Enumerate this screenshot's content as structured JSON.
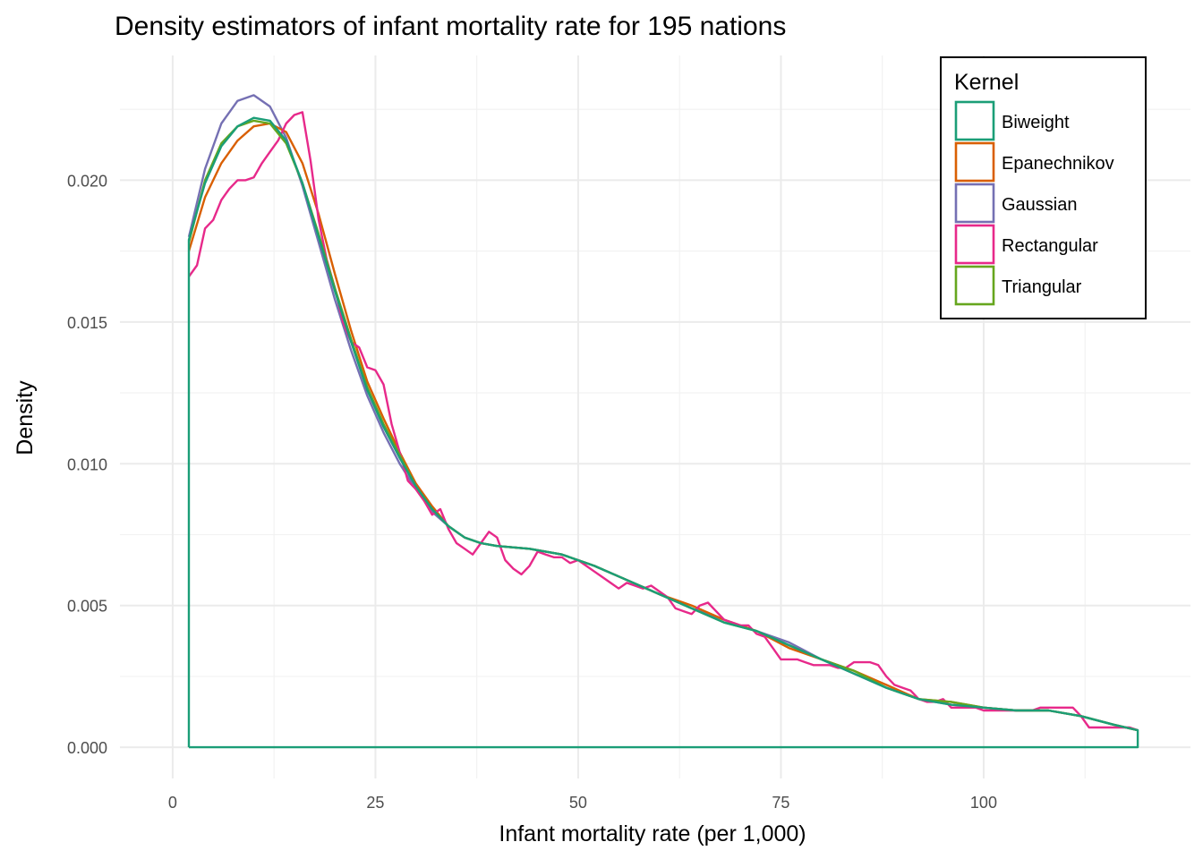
{
  "chart_data": {
    "type": "line",
    "title": "Density estimators of infant mortality rate for 195 nations",
    "xlabel": "Infant mortality rate (per 1,000)",
    "ylabel": "Density",
    "xlim": [
      -6.5,
      125.5
    ],
    "ylim": [
      -0.0011,
      0.0244
    ],
    "x_ticks": [
      0,
      25,
      50,
      75,
      100
    ],
    "x_tick_labels": [
      "0",
      "25",
      "50",
      "75",
      "100"
    ],
    "y_ticks": [
      0.0,
      0.005,
      0.01,
      0.015,
      0.02
    ],
    "y_tick_labels": [
      "0.000",
      "0.005",
      "0.010",
      "0.015",
      "0.020"
    ],
    "grid": true,
    "legend": {
      "title": "Kernel",
      "placement": "top-right"
    },
    "series": [
      {
        "name": "Biweight",
        "color": "#1B9E77",
        "points": [
          [
            2,
            0
          ],
          [
            2,
            0.0179
          ],
          [
            4,
            0.0199
          ],
          [
            6,
            0.0212
          ],
          [
            8,
            0.0219
          ],
          [
            10,
            0.0222
          ],
          [
            12,
            0.0221
          ],
          [
            14,
            0.0214
          ],
          [
            16,
            0.0199
          ],
          [
            18,
            0.018
          ],
          [
            20,
            0.0161
          ],
          [
            22,
            0.0143
          ],
          [
            24,
            0.0126
          ],
          [
            26,
            0.0113
          ],
          [
            28,
            0.0102
          ],
          [
            30,
            0.0092
          ],
          [
            32,
            0.0084
          ],
          [
            34,
            0.0078
          ],
          [
            36,
            0.0074
          ],
          [
            38,
            0.0072
          ],
          [
            40,
            0.0071
          ],
          [
            44,
            0.007
          ],
          [
            48,
            0.0068
          ],
          [
            52,
            0.0064
          ],
          [
            56,
            0.0059
          ],
          [
            60,
            0.0054
          ],
          [
            64,
            0.0049
          ],
          [
            68,
            0.0044
          ],
          [
            72,
            0.0041
          ],
          [
            76,
            0.0036
          ],
          [
            80,
            0.0031
          ],
          [
            84,
            0.0026
          ],
          [
            88,
            0.0021
          ],
          [
            92,
            0.0017
          ],
          [
            96,
            0.0015
          ],
          [
            100,
            0.0014
          ],
          [
            104,
            0.0013
          ],
          [
            108,
            0.0013
          ],
          [
            112,
            0.0011
          ],
          [
            116,
            0.0008
          ],
          [
            119,
            0.0006
          ],
          [
            119,
            0
          ],
          [
            2,
            0
          ]
        ]
      },
      {
        "name": "Epanechnikov",
        "color": "#D95F02",
        "points": [
          [
            2,
            0.0175
          ],
          [
            4,
            0.0194
          ],
          [
            6,
            0.0206
          ],
          [
            8,
            0.0214
          ],
          [
            10,
            0.0219
          ],
          [
            12,
            0.022
          ],
          [
            14,
            0.0217
          ],
          [
            16,
            0.0206
          ],
          [
            18,
            0.0188
          ],
          [
            20,
            0.0167
          ],
          [
            22,
            0.0147
          ],
          [
            24,
            0.0129
          ],
          [
            26,
            0.0116
          ],
          [
            28,
            0.0104
          ],
          [
            30,
            0.0093
          ],
          [
            32,
            0.0085
          ],
          [
            34,
            0.0078
          ],
          [
            36,
            0.0074
          ],
          [
            38,
            0.0072
          ],
          [
            40,
            0.0071
          ],
          [
            44,
            0.007
          ],
          [
            48,
            0.0068
          ],
          [
            52,
            0.0064
          ],
          [
            56,
            0.0059
          ],
          [
            60,
            0.0054
          ],
          [
            64,
            0.005
          ],
          [
            68,
            0.0045
          ],
          [
            72,
            0.0041
          ],
          [
            76,
            0.0035
          ],
          [
            80,
            0.0031
          ],
          [
            84,
            0.0027
          ],
          [
            88,
            0.0022
          ],
          [
            92,
            0.0017
          ],
          [
            96,
            0.0016
          ],
          [
            100,
            0.0014
          ],
          [
            104,
            0.0013
          ],
          [
            108,
            0.0013
          ],
          [
            112,
            0.0011
          ],
          [
            116,
            0.0008
          ],
          [
            119,
            0.0006
          ]
        ]
      },
      {
        "name": "Gaussian",
        "color": "#7570B3",
        "points": [
          [
            2,
            0.018
          ],
          [
            4,
            0.0204
          ],
          [
            6,
            0.022
          ],
          [
            8,
            0.0228
          ],
          [
            10,
            0.023
          ],
          [
            12,
            0.0226
          ],
          [
            14,
            0.0215
          ],
          [
            16,
            0.0198
          ],
          [
            18,
            0.0178
          ],
          [
            20,
            0.0158
          ],
          [
            22,
            0.014
          ],
          [
            24,
            0.0124
          ],
          [
            26,
            0.0111
          ],
          [
            28,
            0.01
          ],
          [
            30,
            0.0091
          ],
          [
            32,
            0.0083
          ],
          [
            34,
            0.0078
          ],
          [
            36,
            0.0074
          ],
          [
            38,
            0.0072
          ],
          [
            40,
            0.0071
          ],
          [
            44,
            0.007
          ],
          [
            48,
            0.0068
          ],
          [
            52,
            0.0064
          ],
          [
            56,
            0.0059
          ],
          [
            60,
            0.0054
          ],
          [
            64,
            0.0049
          ],
          [
            68,
            0.0045
          ],
          [
            72,
            0.0041
          ],
          [
            76,
            0.0037
          ],
          [
            80,
            0.0031
          ],
          [
            84,
            0.0026
          ],
          [
            88,
            0.0021
          ],
          [
            92,
            0.0017
          ],
          [
            96,
            0.0015
          ],
          [
            100,
            0.0014
          ],
          [
            104,
            0.0013
          ],
          [
            108,
            0.0013
          ],
          [
            112,
            0.0011
          ],
          [
            116,
            0.0008
          ],
          [
            119,
            0.0006
          ]
        ]
      },
      {
        "name": "Rectangular",
        "color": "#E7298A",
        "points": [
          [
            2,
            0.0166
          ],
          [
            3,
            0.017
          ],
          [
            4,
            0.0183
          ],
          [
            5,
            0.0186
          ],
          [
            6,
            0.0193
          ],
          [
            7,
            0.0197
          ],
          [
            8,
            0.02
          ],
          [
            9,
            0.02
          ],
          [
            10,
            0.0201
          ],
          [
            11,
            0.0206
          ],
          [
            12,
            0.021
          ],
          [
            13,
            0.0214
          ],
          [
            14,
            0.022
          ],
          [
            15,
            0.0223
          ],
          [
            16,
            0.0224
          ],
          [
            17,
            0.0207
          ],
          [
            18,
            0.0186
          ],
          [
            19,
            0.0172
          ],
          [
            20,
            0.0162
          ],
          [
            21,
            0.015
          ],
          [
            22,
            0.0143
          ],
          [
            23,
            0.0141
          ],
          [
            24,
            0.0134
          ],
          [
            25,
            0.0133
          ],
          [
            26,
            0.0128
          ],
          [
            27,
            0.0114
          ],
          [
            28,
            0.0104
          ],
          [
            29,
            0.0094
          ],
          [
            30,
            0.0091
          ],
          [
            31,
            0.0087
          ],
          [
            32,
            0.0082
          ],
          [
            33,
            0.0084
          ],
          [
            34,
            0.0077
          ],
          [
            35,
            0.0072
          ],
          [
            36,
            0.007
          ],
          [
            37,
            0.0068
          ],
          [
            38,
            0.0072
          ],
          [
            39,
            0.0076
          ],
          [
            40,
            0.0074
          ],
          [
            41,
            0.0066
          ],
          [
            42,
            0.0063
          ],
          [
            43,
            0.0061
          ],
          [
            44,
            0.0064
          ],
          [
            45,
            0.0069
          ],
          [
            46,
            0.0068
          ],
          [
            47,
            0.0067
          ],
          [
            48,
            0.0067
          ],
          [
            49,
            0.0065
          ],
          [
            50,
            0.0066
          ],
          [
            51,
            0.0064
          ],
          [
            52,
            0.0062
          ],
          [
            53,
            0.006
          ],
          [
            54,
            0.0058
          ],
          [
            55,
            0.0056
          ],
          [
            56,
            0.0058
          ],
          [
            57,
            0.0057
          ],
          [
            58,
            0.0056
          ],
          [
            59,
            0.0057
          ],
          [
            60,
            0.0055
          ],
          [
            61,
            0.0053
          ],
          [
            62,
            0.0049
          ],
          [
            63,
            0.0048
          ],
          [
            64,
            0.0047
          ],
          [
            65,
            0.005
          ],
          [
            66,
            0.0051
          ],
          [
            67,
            0.0048
          ],
          [
            68,
            0.0045
          ],
          [
            69,
            0.0044
          ],
          [
            70,
            0.0043
          ],
          [
            71,
            0.0043
          ],
          [
            72,
            0.004
          ],
          [
            73,
            0.0039
          ],
          [
            74,
            0.0035
          ],
          [
            75,
            0.0031
          ],
          [
            76,
            0.0031
          ],
          [
            77,
            0.0031
          ],
          [
            78,
            0.003
          ],
          [
            79,
            0.0029
          ],
          [
            80,
            0.0029
          ],
          [
            81,
            0.0029
          ],
          [
            82,
            0.0028
          ],
          [
            83,
            0.0028
          ],
          [
            84,
            0.003
          ],
          [
            85,
            0.003
          ],
          [
            86,
            0.003
          ],
          [
            87,
            0.0029
          ],
          [
            88,
            0.0025
          ],
          [
            89,
            0.0022
          ],
          [
            90,
            0.0021
          ],
          [
            91,
            0.002
          ],
          [
            92,
            0.0017
          ],
          [
            93,
            0.0016
          ],
          [
            94,
            0.0016
          ],
          [
            95,
            0.0017
          ],
          [
            96,
            0.0014
          ],
          [
            97,
            0.0014
          ],
          [
            98,
            0.0014
          ],
          [
            99,
            0.0014
          ],
          [
            100,
            0.0013
          ],
          [
            101,
            0.0013
          ],
          [
            102,
            0.0013
          ],
          [
            103,
            0.0013
          ],
          [
            104,
            0.0013
          ],
          [
            105,
            0.0013
          ],
          [
            106,
            0.0013
          ],
          [
            107,
            0.0014
          ],
          [
            108,
            0.0014
          ],
          [
            109,
            0.0014
          ],
          [
            110,
            0.0014
          ],
          [
            111,
            0.0014
          ],
          [
            112,
            0.0011
          ],
          [
            113,
            0.0007
          ],
          [
            114,
            0.0007
          ],
          [
            115,
            0.0007
          ],
          [
            116,
            0.0007
          ],
          [
            117,
            0.0007
          ],
          [
            118,
            0.0007
          ],
          [
            119,
            0.0006
          ]
        ]
      },
      {
        "name": "Triangular",
        "color": "#66A61E",
        "points": [
          [
            2,
            0.0178
          ],
          [
            4,
            0.02
          ],
          [
            6,
            0.0213
          ],
          [
            8,
            0.0219
          ],
          [
            10,
            0.0221
          ],
          [
            12,
            0.022
          ],
          [
            14,
            0.0213
          ],
          [
            16,
            0.0199
          ],
          [
            18,
            0.0181
          ],
          [
            20,
            0.0162
          ],
          [
            22,
            0.0144
          ],
          [
            24,
            0.0127
          ],
          [
            26,
            0.0114
          ],
          [
            28,
            0.0103
          ],
          [
            30,
            0.0092
          ],
          [
            32,
            0.0084
          ],
          [
            34,
            0.0078
          ],
          [
            36,
            0.0074
          ],
          [
            38,
            0.0072
          ],
          [
            40,
            0.0071
          ],
          [
            44,
            0.007
          ],
          [
            48,
            0.0068
          ],
          [
            52,
            0.0064
          ],
          [
            56,
            0.0059
          ],
          [
            60,
            0.0054
          ],
          [
            64,
            0.0049
          ],
          [
            68,
            0.0044
          ],
          [
            72,
            0.0041
          ],
          [
            76,
            0.0036
          ],
          [
            80,
            0.0031
          ],
          [
            84,
            0.0027
          ],
          [
            88,
            0.0021
          ],
          [
            92,
            0.0017
          ],
          [
            96,
            0.0016
          ],
          [
            100,
            0.0014
          ],
          [
            104,
            0.0013
          ],
          [
            108,
            0.0013
          ],
          [
            112,
            0.0011
          ],
          [
            116,
            0.0008
          ],
          [
            119,
            0.0006
          ]
        ]
      }
    ]
  }
}
